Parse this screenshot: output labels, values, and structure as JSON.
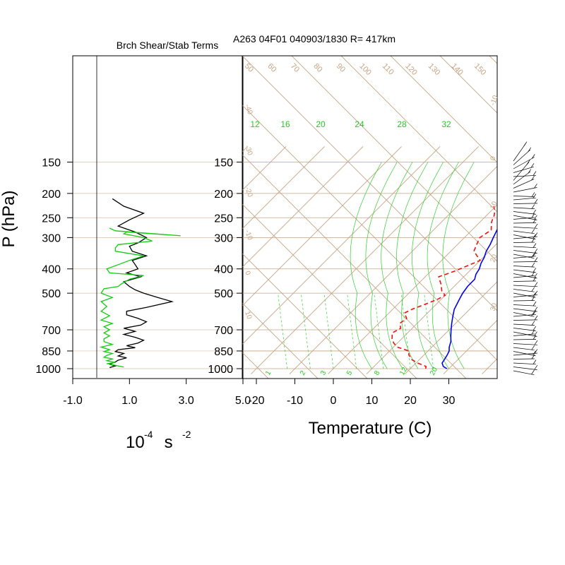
{
  "left_title": "Brch Shear/Stab Terms",
  "main_title": "A263 04F01 040903/1830 R= 417km",
  "ylabel": "P (hPa)",
  "pressure_levels": [
    "150",
    "200",
    "250",
    "300",
    "400",
    "500",
    "700",
    "850",
    "1000"
  ],
  "left_xticks": [
    "-1.0",
    "1.0",
    "3.0",
    "5.0"
  ],
  "left_units": {
    "base": "10",
    "exp1": "-4",
    "mid": " s ",
    "exp2": "-2"
  },
  "temp_xticks": [
    "-20",
    "-10",
    "0",
    "10",
    "20",
    "30"
  ],
  "temp_xlabel": "Temperature (C)",
  "theta_labels": [
    "50",
    "60",
    "70",
    "80",
    "90",
    "100",
    "110",
    "120",
    "130",
    "140",
    "150"
  ],
  "mixing_ratio_labels": [
    "12",
    "16",
    "20",
    "24",
    "28",
    "32"
  ],
  "bottom_mixing_labels": [
    "1",
    "2",
    "3",
    "5",
    "8",
    "12",
    "20"
  ],
  "right_labels": [
    "-10",
    "0",
    "10",
    "20",
    "30"
  ],
  "left_labels": [
    "-40",
    "-30",
    "-20",
    "-10",
    "0",
    "10"
  ],
  "colors": {
    "axis": "#000000",
    "brown": "#c4a484",
    "green": "#33cc33",
    "green_label": "#22cc22",
    "temperature": "#0000ee",
    "dewpoint": "#ee1111",
    "shear": "#000000",
    "stab": "#11cc11"
  },
  "chart_data": [
    {
      "type": "line",
      "title": "Brch Shear/Stab Terms",
      "xlim": [
        -1.0,
        5.0
      ],
      "y_pressure_range": [
        1000,
        150
      ],
      "series": [
        {
          "color": "#000000",
          "x": [
            0.3,
            0.5,
            0.3,
            0.5,
            0.6,
            0.9,
            0.6,
            0.8,
            0.5,
            0.6,
            1.2,
            0.9,
            1.3,
            1.5,
            1.2,
            0.8,
            1.2,
            0.8,
            1.4,
            1.6,
            1.3,
            0.9,
            0.9,
            1.6,
            2.5,
            2.0,
            1.5,
            1.2,
            1.0,
            0.8,
            1.4,
            0.9,
            1.3,
            1.2,
            1.1,
            1.6,
            1.1,
            1.0,
            1.3,
            1.6,
            1.2,
            0.6,
            1.0,
            1.5,
            0.8,
            0.4
          ],
          "p": [
            990,
            975,
            960,
            940,
            925,
            905,
            890,
            870,
            855,
            840,
            825,
            810,
            790,
            770,
            750,
            730,
            710,
            690,
            670,
            650,
            630,
            610,
            590,
            570,
            540,
            520,
            500,
            485,
            470,
            450,
            430,
            415,
            400,
            385,
            370,
            355,
            340,
            325,
            315,
            300,
            285,
            270,
            255,
            240,
            225,
            210
          ]
        },
        {
          "color": "#11cc11",
          "x": [
            0.8,
            0.5,
            0.2,
            0.5,
            0.2,
            0.4,
            0.1,
            0.2,
            0.4,
            0.1,
            0.3,
            0.0,
            0.4,
            0.1,
            0.1,
            0.3,
            0.1,
            0.3,
            0.1,
            0.4,
            0.0,
            0.3,
            0.0,
            0.2,
            0.0,
            0.4,
            0.0,
            0.1,
            0.6,
            0.7,
            1.0,
            1.5,
            0.3,
            0.2,
            0.6,
            1.0,
            1.5,
            0.5,
            0.5,
            0.6,
            1.8,
            1.5,
            0.8,
            0.9,
            2.8,
            0.5,
            0.3
          ],
          "p": [
            985,
            970,
            955,
            945,
            930,
            915,
            900,
            885,
            870,
            855,
            840,
            820,
            800,
            780,
            760,
            740,
            720,
            700,
            680,
            660,
            640,
            615,
            590,
            565,
            540,
            520,
            500,
            480,
            470,
            460,
            440,
            425,
            415,
            400,
            385,
            370,
            355,
            340,
            330,
            320,
            310,
            300,
            290,
            285,
            295,
            282,
            275
          ]
        }
      ]
    },
    {
      "type": "line",
      "title": "A263 04F01 040903/1830 R= 417km",
      "xlabel": "Temperature (C)",
      "ylabel": "P (hPa)",
      "xlim": [
        -23,
        43
      ],
      "y_pressure_range": [
        1000,
        150
      ],
      "skew": "temperature lines rise to the right at 45 degrees",
      "series": [
        {
          "color": "#0000ee",
          "style": "solid",
          "x": [
            29.5,
            28,
            26.8,
            26.5,
            26,
            25.5,
            24.5,
            23.5,
            22,
            20.5,
            19,
            17.5,
            16,
            15,
            14.5,
            14,
            13.5,
            13.5,
            12.5,
            12,
            11,
            10.3,
            9.2,
            8.5,
            7.5,
            6.5,
            5.5,
            4.7,
            3.8,
            2.9
          ],
          "p": [
            1000,
            980,
            950,
            920,
            880,
            850,
            820,
            780,
            740,
            700,
            660,
            620,
            580,
            540,
            520,
            500,
            470,
            440,
            420,
            400,
            380,
            360,
            340,
            320,
            300,
            280,
            260,
            240,
            220,
            205
          ]
        },
        {
          "color": "#ee1111",
          "style": "dashed",
          "x": [
            24,
            23.5,
            20.5,
            18,
            16,
            15,
            11,
            9,
            7.5,
            6,
            7,
            5.5,
            6,
            4,
            5,
            7,
            9,
            10,
            8,
            6,
            3.5,
            6,
            8,
            10,
            6,
            5,
            4,
            5,
            3,
            2,
            1,
            -0.5
          ],
          "p": [
            1000,
            980,
            950,
            920,
            880,
            850,
            820,
            790,
            760,
            720,
            690,
            660,
            630,
            600,
            580,
            555,
            530,
            510,
            490,
            460,
            430,
            410,
            390,
            370,
            340,
            320,
            300,
            280,
            260,
            245,
            235,
            225
          ]
        }
      ]
    }
  ]
}
